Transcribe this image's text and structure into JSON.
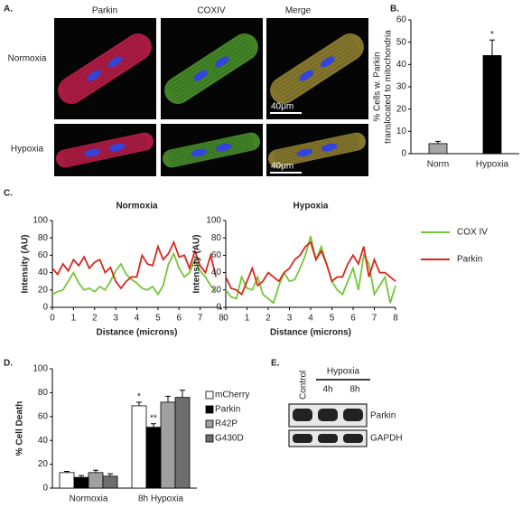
{
  "figure": {
    "panel_labels": [
      "A.",
      "B.",
      "C.",
      "D.",
      "E."
    ],
    "micrographs": {
      "columns": [
        "Parkin",
        "COXIV",
        "Merge"
      ],
      "rows": [
        "Normoxia",
        "Hypoxia"
      ],
      "scale_bar": "40μm"
    },
    "blot": {
      "control": "Control",
      "group": "Hypoxia",
      "times": [
        "4h",
        "8h"
      ],
      "bands": [
        "Parkin",
        "GAPDH"
      ]
    }
  },
  "chart_data": [
    {
      "type": "bar",
      "categories": [
        "Norm",
        "Hypoxia"
      ],
      "values": [
        4.5,
        44
      ],
      "errors": [
        1,
        7
      ],
      "colors": [
        "#a6a6a6",
        "#000000"
      ],
      "ylabel": [
        "% Cells w. Parkin",
        "translocated to mitochondria"
      ],
      "ylim": [
        0,
        60
      ],
      "yticks": [
        0,
        10,
        20,
        30,
        40,
        50,
        60
      ],
      "annotations": [
        {
          "text": "*",
          "category": "Hypoxia"
        }
      ]
    },
    {
      "type": "line",
      "title": "Normoxia",
      "xlabel": "Distance (microns)",
      "ylabel": "Intensity (AU)",
      "x": [
        0,
        0.25,
        0.5,
        0.75,
        1,
        1.25,
        1.5,
        1.75,
        2,
        2.25,
        2.5,
        2.75,
        3,
        3.25,
        3.5,
        3.75,
        4,
        4.25,
        4.5,
        4.75,
        5,
        5.25,
        5.5,
        5.75,
        6,
        6.25,
        6.5,
        6.75,
        7,
        7.25,
        7.5,
        7.75
      ],
      "series": [
        {
          "name": "COX IV",
          "color": "#77c63a",
          "values": [
            15,
            18,
            20,
            30,
            40,
            28,
            20,
            22,
            18,
            24,
            20,
            30,
            42,
            50,
            38,
            32,
            28,
            22,
            20,
            24,
            15,
            25,
            50,
            62,
            45,
            35,
            40,
            55,
            42,
            35,
            25,
            18
          ]
        },
        {
          "name": "Parkin",
          "color": "#d9261c",
          "values": [
            45,
            38,
            50,
            42,
            55,
            48,
            58,
            45,
            52,
            55,
            40,
            46,
            30,
            22,
            30,
            35,
            35,
            60,
            50,
            48,
            70,
            55,
            62,
            75,
            58,
            60,
            45,
            65,
            48,
            40,
            60,
            35
          ]
        }
      ],
      "xlim": [
        0,
        8
      ],
      "xticks": [
        0,
        1,
        2,
        3,
        4,
        5,
        6,
        7,
        8
      ],
      "ylim": [
        0,
        100
      ],
      "yticks": [
        0,
        20,
        40,
        60,
        80,
        100
      ]
    },
    {
      "type": "line",
      "title": "Hypoxia",
      "xlabel": "Distance (microns)",
      "ylabel": "Intensity (AU)",
      "x": [
        0,
        0.25,
        0.5,
        0.75,
        1,
        1.25,
        1.5,
        1.75,
        2,
        2.25,
        2.5,
        2.75,
        3,
        3.25,
        3.5,
        3.75,
        4,
        4.25,
        4.5,
        4.75,
        5,
        5.25,
        5.5,
        5.75,
        6,
        6.25,
        6.5,
        6.75,
        7,
        7.25,
        7.5,
        7.75,
        8
      ],
      "series": [
        {
          "name": "COX IV",
          "color": "#77c63a",
          "values": [
            20,
            12,
            10,
            35,
            22,
            20,
            35,
            15,
            10,
            5,
            25,
            40,
            30,
            32,
            45,
            60,
            82,
            55,
            70,
            50,
            30,
            20,
            15,
            30,
            45,
            20,
            60,
            50,
            15,
            25,
            35,
            5,
            25
          ]
        },
        {
          "name": "Parkin",
          "color": "#d9261c",
          "values": [
            35,
            22,
            20,
            15,
            30,
            45,
            25,
            30,
            40,
            35,
            30,
            40,
            45,
            55,
            60,
            70,
            75,
            55,
            65,
            50,
            30,
            35,
            35,
            50,
            60,
            50,
            70,
            35,
            55,
            40,
            40,
            35,
            30
          ]
        }
      ],
      "xlim": [
        0,
        8
      ],
      "xticks": [
        0,
        1,
        2,
        3,
        4,
        5,
        6,
        7,
        8
      ],
      "ylim": [
        0,
        100
      ],
      "yticks": [
        0,
        20,
        40,
        60,
        80,
        100
      ]
    },
    {
      "type": "bar",
      "categories": [
        "Normoxia",
        "8h Hypoxia"
      ],
      "ylabel": "% Cell Death",
      "series": [
        {
          "name": "mCherry",
          "color": "#ffffff",
          "values": [
            13,
            69
          ],
          "errors": [
            1,
            3
          ]
        },
        {
          "name": "Parkin",
          "color": "#000000",
          "values": [
            9,
            51
          ],
          "errors": [
            1.5,
            3
          ]
        },
        {
          "name": "R42P",
          "color": "#a0a0a0",
          "values": [
            13,
            72
          ],
          "errors": [
            2,
            5
          ]
        },
        {
          "name": "G430D",
          "color": "#6e6e6e",
          "values": [
            10,
            76
          ],
          "errors": [
            2,
            6
          ]
        }
      ],
      "ylim": [
        0,
        100
      ],
      "yticks": [
        0,
        20,
        40,
        60,
        80,
        100
      ],
      "annotations": [
        {
          "text": "*",
          "series": "mCherry",
          "category": "8h Hypoxia"
        },
        {
          "text": "**",
          "series": "Parkin",
          "category": "8h Hypoxia"
        }
      ]
    }
  ]
}
